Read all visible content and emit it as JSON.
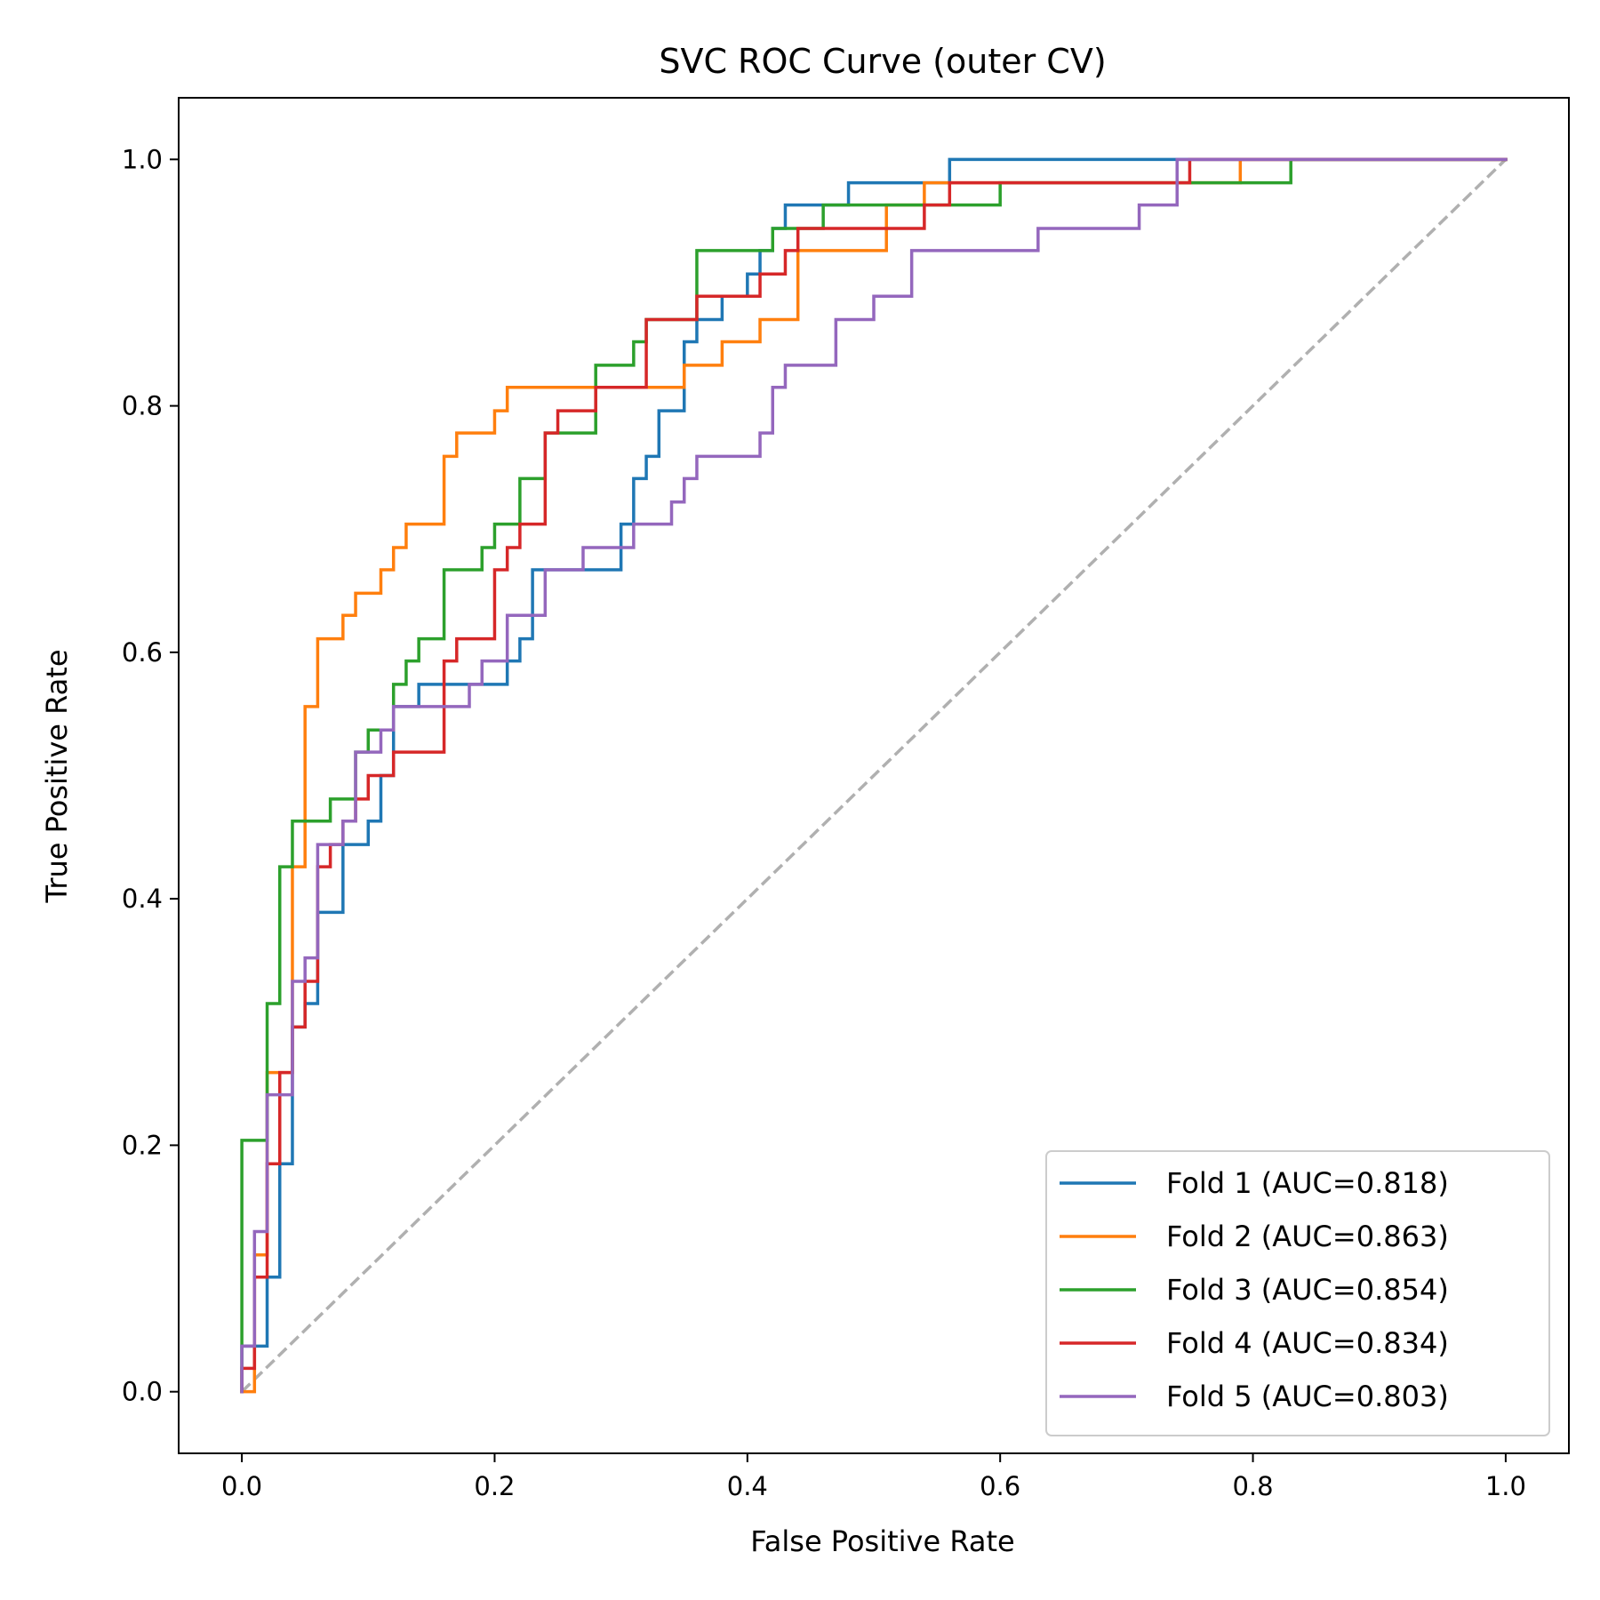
{
  "chart_data": {
    "type": "line",
    "title": "SVC ROC Curve (outer CV)",
    "xlabel": "False Positive Rate",
    "ylabel": "True Positive Rate",
    "xlim": [
      -0.05,
      1.05
    ],
    "ylim": [
      -0.05,
      1.05
    ],
    "xticks": [
      0.0,
      0.2,
      0.4,
      0.6,
      0.8,
      1.0
    ],
    "yticks": [
      0.0,
      0.2,
      0.4,
      0.6,
      0.8,
      1.0
    ],
    "xtick_labels": [
      "0.0",
      "0.2",
      "0.4",
      "0.6",
      "0.8",
      "1.0"
    ],
    "ytick_labels": [
      "0.0",
      "0.2",
      "0.4",
      "0.6",
      "0.8",
      "1.0"
    ],
    "grid": false,
    "legend_position": "lower-right",
    "series": [
      {
        "name": "Fold 1 (AUC=0.818)",
        "color": "#1f77b4",
        "x": [
          0,
          0,
          0.02,
          0.02,
          0.03,
          0.03,
          0.04,
          0.04,
          0.05,
          0.05,
          0.06,
          0.06,
          0.08,
          0.08,
          0.1,
          0.1,
          0.11,
          0.11,
          0.12,
          0.12,
          0.14,
          0.14,
          0.21,
          0.21,
          0.22,
          0.22,
          0.23,
          0.23,
          0.3,
          0.3,
          0.31,
          0.31,
          0.32,
          0.32,
          0.33,
          0.33,
          0.35,
          0.35,
          0.36,
          0.36,
          0.38,
          0.38,
          0.4,
          0.4,
          0.41,
          0.41,
          0.42,
          0.42,
          0.43,
          0.43,
          0.48,
          0.48,
          0.56,
          0.56,
          1.0
        ],
        "y": [
          0,
          0.037,
          0.037,
          0.093,
          0.093,
          0.185,
          0.185,
          0.296,
          0.296,
          0.315,
          0.315,
          0.389,
          0.389,
          0.444,
          0.444,
          0.463,
          0.463,
          0.5,
          0.5,
          0.556,
          0.556,
          0.574,
          0.574,
          0.593,
          0.593,
          0.611,
          0.611,
          0.667,
          0.667,
          0.704,
          0.704,
          0.741,
          0.741,
          0.759,
          0.759,
          0.796,
          0.796,
          0.852,
          0.852,
          0.87,
          0.87,
          0.889,
          0.889,
          0.907,
          0.907,
          0.926,
          0.926,
          0.944,
          0.944,
          0.963,
          0.963,
          0.981,
          0.981,
          1.0,
          1.0
        ]
      },
      {
        "name": "Fold 2 (AUC=0.863)",
        "color": "#ff7f0e",
        "x": [
          0,
          0.01,
          0.01,
          0.02,
          0.02,
          0.04,
          0.04,
          0.05,
          0.05,
          0.06,
          0.06,
          0.08,
          0.08,
          0.09,
          0.09,
          0.11,
          0.11,
          0.12,
          0.12,
          0.13,
          0.13,
          0.16,
          0.16,
          0.17,
          0.17,
          0.2,
          0.2,
          0.21,
          0.21,
          0.35,
          0.35,
          0.38,
          0.38,
          0.41,
          0.41,
          0.44,
          0.44,
          0.51,
          0.51,
          0.54,
          0.54,
          0.79,
          0.79,
          1.0
        ],
        "y": [
          0,
          0,
          0.111,
          0.111,
          0.259,
          0.259,
          0.426,
          0.426,
          0.556,
          0.556,
          0.611,
          0.611,
          0.63,
          0.63,
          0.648,
          0.648,
          0.667,
          0.667,
          0.685,
          0.685,
          0.704,
          0.704,
          0.759,
          0.759,
          0.778,
          0.778,
          0.796,
          0.796,
          0.815,
          0.815,
          0.833,
          0.833,
          0.852,
          0.852,
          0.87,
          0.87,
          0.926,
          0.926,
          0.963,
          0.963,
          0.981,
          0.981,
          1.0,
          1.0
        ]
      },
      {
        "name": "Fold 3 (AUC=0.854)",
        "color": "#2ca02c",
        "x": [
          0,
          0,
          0.02,
          0.02,
          0.03,
          0.03,
          0.04,
          0.04,
          0.07,
          0.07,
          0.09,
          0.09,
          0.1,
          0.1,
          0.12,
          0.12,
          0.13,
          0.13,
          0.14,
          0.14,
          0.16,
          0.16,
          0.19,
          0.19,
          0.2,
          0.2,
          0.22,
          0.22,
          0.24,
          0.24,
          0.28,
          0.28,
          0.31,
          0.31,
          0.32,
          0.32,
          0.36,
          0.36,
          0.42,
          0.42,
          0.46,
          0.46,
          0.6,
          0.6,
          0.83,
          0.83,
          1.0
        ],
        "y": [
          0,
          0.204,
          0.204,
          0.315,
          0.315,
          0.426,
          0.426,
          0.463,
          0.463,
          0.481,
          0.481,
          0.519,
          0.519,
          0.537,
          0.537,
          0.574,
          0.574,
          0.593,
          0.593,
          0.611,
          0.611,
          0.667,
          0.667,
          0.685,
          0.685,
          0.704,
          0.704,
          0.741,
          0.741,
          0.778,
          0.778,
          0.833,
          0.833,
          0.852,
          0.852,
          0.87,
          0.87,
          0.926,
          0.926,
          0.944,
          0.944,
          0.963,
          0.963,
          0.981,
          0.981,
          1.0,
          1.0
        ]
      },
      {
        "name": "Fold 4 (AUC=0.834)",
        "color": "#d62728",
        "x": [
          0,
          0,
          0.01,
          0.01,
          0.02,
          0.02,
          0.03,
          0.03,
          0.04,
          0.04,
          0.05,
          0.05,
          0.06,
          0.06,
          0.07,
          0.07,
          0.08,
          0.08,
          0.09,
          0.09,
          0.1,
          0.1,
          0.12,
          0.12,
          0.16,
          0.16,
          0.17,
          0.17,
          0.2,
          0.2,
          0.21,
          0.21,
          0.22,
          0.22,
          0.24,
          0.24,
          0.25,
          0.25,
          0.28,
          0.28,
          0.32,
          0.32,
          0.36,
          0.36,
          0.41,
          0.41,
          0.43,
          0.43,
          0.44,
          0.44,
          0.54,
          0.54,
          0.56,
          0.56,
          0.75,
          0.75,
          1.0
        ],
        "y": [
          0,
          0.019,
          0.019,
          0.093,
          0.093,
          0.185,
          0.185,
          0.259,
          0.259,
          0.296,
          0.296,
          0.333,
          0.333,
          0.426,
          0.426,
          0.444,
          0.444,
          0.463,
          0.463,
          0.481,
          0.481,
          0.5,
          0.5,
          0.519,
          0.519,
          0.593,
          0.593,
          0.611,
          0.611,
          0.667,
          0.667,
          0.685,
          0.685,
          0.704,
          0.704,
          0.778,
          0.778,
          0.796,
          0.796,
          0.815,
          0.815,
          0.87,
          0.87,
          0.889,
          0.889,
          0.907,
          0.907,
          0.926,
          0.926,
          0.944,
          0.944,
          0.963,
          0.963,
          0.981,
          0.981,
          1.0,
          1.0
        ]
      },
      {
        "name": "Fold 5 (AUC=0.803)",
        "color": "#9467bd",
        "x": [
          0,
          0,
          0.01,
          0.01,
          0.02,
          0.02,
          0.04,
          0.04,
          0.05,
          0.05,
          0.06,
          0.06,
          0.08,
          0.08,
          0.09,
          0.09,
          0.11,
          0.11,
          0.12,
          0.12,
          0.18,
          0.18,
          0.19,
          0.19,
          0.21,
          0.21,
          0.24,
          0.24,
          0.27,
          0.27,
          0.31,
          0.31,
          0.34,
          0.34,
          0.35,
          0.35,
          0.36,
          0.36,
          0.41,
          0.41,
          0.42,
          0.42,
          0.43,
          0.43,
          0.47,
          0.47,
          0.5,
          0.5,
          0.53,
          0.53,
          0.63,
          0.63,
          0.71,
          0.71,
          0.74,
          0.74,
          1.0
        ],
        "y": [
          0,
          0.037,
          0.037,
          0.13,
          0.13,
          0.241,
          0.241,
          0.333,
          0.333,
          0.352,
          0.352,
          0.444,
          0.444,
          0.463,
          0.463,
          0.519,
          0.519,
          0.537,
          0.537,
          0.556,
          0.556,
          0.574,
          0.574,
          0.593,
          0.593,
          0.63,
          0.63,
          0.667,
          0.667,
          0.685,
          0.685,
          0.704,
          0.704,
          0.722,
          0.722,
          0.741,
          0.741,
          0.759,
          0.759,
          0.778,
          0.778,
          0.815,
          0.815,
          0.833,
          0.833,
          0.87,
          0.87,
          0.889,
          0.889,
          0.926,
          0.926,
          0.944,
          0.944,
          0.963,
          0.963,
          1.0,
          1.0
        ]
      }
    ],
    "reference_line": {
      "x": [
        0,
        1
      ],
      "y": [
        0,
        1
      ],
      "color": "#b0b0b0",
      "style": "dashed"
    }
  }
}
